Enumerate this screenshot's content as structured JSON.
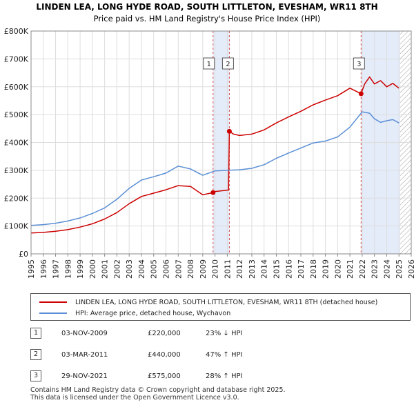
{
  "chart_data": {
    "type": "line",
    "title": "LINDEN LEA, LONG HYDE ROAD, SOUTH LITTLETON, EVESHAM, WR11 8TH",
    "subtitle": "Price paid vs. HM Land Registry's House Price Index (HPI)",
    "xlim": [
      1995,
      2026
    ],
    "ylim": [
      0,
      800000
    ],
    "x_ticks": [
      "1995",
      "1996",
      "1997",
      "1998",
      "1999",
      "2000",
      "2001",
      "2002",
      "2003",
      "2004",
      "2005",
      "2006",
      "2007",
      "2008",
      "2009",
      "2010",
      "2011",
      "2012",
      "2013",
      "2014",
      "2015",
      "2016",
      "2017",
      "2018",
      "2019",
      "2020",
      "2021",
      "2022",
      "2023",
      "2024",
      "2025",
      "2026"
    ],
    "y_ticks": [
      {
        "value": 0,
        "label": "£0"
      },
      {
        "value": 100000,
        "label": "£100K"
      },
      {
        "value": 200000,
        "label": "£200K"
      },
      {
        "value": 300000,
        "label": "£300K"
      },
      {
        "value": 400000,
        "label": "£400K"
      },
      {
        "value": 500000,
        "label": "£500K"
      },
      {
        "value": 600000,
        "label": "£600K"
      },
      {
        "value": 700000,
        "label": "£700K"
      },
      {
        "value": 800000,
        "label": "£800K"
      }
    ],
    "series": [
      {
        "name": "LINDEN LEA, LONG HYDE ROAD, SOUTH LITTLETON, EVESHAM, WR11 8TH (detached house)",
        "color": "#cc0000",
        "points": [
          [
            1995,
            75000
          ],
          [
            1996,
            77000
          ],
          [
            1997,
            81000
          ],
          [
            1998,
            87000
          ],
          [
            1999,
            96000
          ],
          [
            2000,
            108000
          ],
          [
            2001,
            125000
          ],
          [
            2002,
            148000
          ],
          [
            2003,
            180000
          ],
          [
            2004,
            206000
          ],
          [
            2005,
            218000
          ],
          [
            2006,
            230000
          ],
          [
            2007,
            245000
          ],
          [
            2008,
            242000
          ],
          [
            2009,
            212000
          ],
          [
            2009.84,
            220000
          ],
          [
            2010,
            224000
          ],
          [
            2011.1,
            229000
          ],
          [
            2011.17,
            440000
          ],
          [
            2011.5,
            430000
          ],
          [
            2012,
            425000
          ],
          [
            2013,
            430000
          ],
          [
            2014,
            445000
          ],
          [
            2015,
            470000
          ],
          [
            2016,
            492000
          ],
          [
            2017,
            512000
          ],
          [
            2018,
            535000
          ],
          [
            2019,
            552000
          ],
          [
            2020,
            568000
          ],
          [
            2021,
            595000
          ],
          [
            2021.91,
            575000
          ],
          [
            2022.2,
            610000
          ],
          [
            2022.6,
            635000
          ],
          [
            2023,
            610000
          ],
          [
            2023.5,
            622000
          ],
          [
            2024,
            600000
          ],
          [
            2024.5,
            612000
          ],
          [
            2025,
            595000
          ]
        ]
      },
      {
        "name": "HPI: Average price, detached house, Wychavon",
        "color": "#5b8fd6",
        "points": [
          [
            1995,
            102000
          ],
          [
            1996,
            105000
          ],
          [
            1997,
            110000
          ],
          [
            1998,
            118000
          ],
          [
            1999,
            129000
          ],
          [
            2000,
            145000
          ],
          [
            2001,
            165000
          ],
          [
            2002,
            196000
          ],
          [
            2003,
            235000
          ],
          [
            2004,
            265000
          ],
          [
            2005,
            277000
          ],
          [
            2006,
            290000
          ],
          [
            2007,
            315000
          ],
          [
            2008,
            305000
          ],
          [
            2009,
            282000
          ],
          [
            2010,
            298000
          ],
          [
            2011,
            300000
          ],
          [
            2012,
            302000
          ],
          [
            2013,
            307000
          ],
          [
            2014,
            320000
          ],
          [
            2015,
            343000
          ],
          [
            2016,
            362000
          ],
          [
            2017,
            380000
          ],
          [
            2018,
            398000
          ],
          [
            2019,
            405000
          ],
          [
            2020,
            420000
          ],
          [
            2021,
            455000
          ],
          [
            2022,
            510000
          ],
          [
            2022.6,
            505000
          ],
          [
            2023,
            485000
          ],
          [
            2023.5,
            472000
          ],
          [
            2024,
            478000
          ],
          [
            2024.5,
            482000
          ],
          [
            2025,
            470000
          ]
        ]
      }
    ],
    "sales": [
      {
        "num": "1",
        "x": 2009.84,
        "price": 220000,
        "date": "03-NOV-2009",
        "price_label": "£220,000",
        "hpi": "23% ↓ HPI"
      },
      {
        "num": "2",
        "x": 2011.17,
        "price": 440000,
        "date": "03-MAR-2011",
        "price_label": "£440,000",
        "hpi": "47% ↑ HPI"
      },
      {
        "num": "3",
        "x": 2021.91,
        "price": 575000,
        "date": "29-NOV-2021",
        "price_label": "£575,000",
        "hpi": "28% ↑ HPI"
      }
    ],
    "shaded_spans": [
      [
        2009.84,
        2011.17
      ],
      [
        2021.91,
        2025.1
      ]
    ],
    "hatch_from": 2025.1
  },
  "legend": {
    "property_label": "LINDEN LEA, LONG HYDE ROAD, SOUTH LITTLETON, EVESHAM, WR11 8TH (detached house)",
    "hpi_label": "HPI: Average price, detached house, Wychavon"
  },
  "footer": {
    "line1": "Contains HM Land Registry data © Crown copyright and database right 2025.",
    "line2": "This data is licensed under the Open Government Licence v3.0."
  }
}
